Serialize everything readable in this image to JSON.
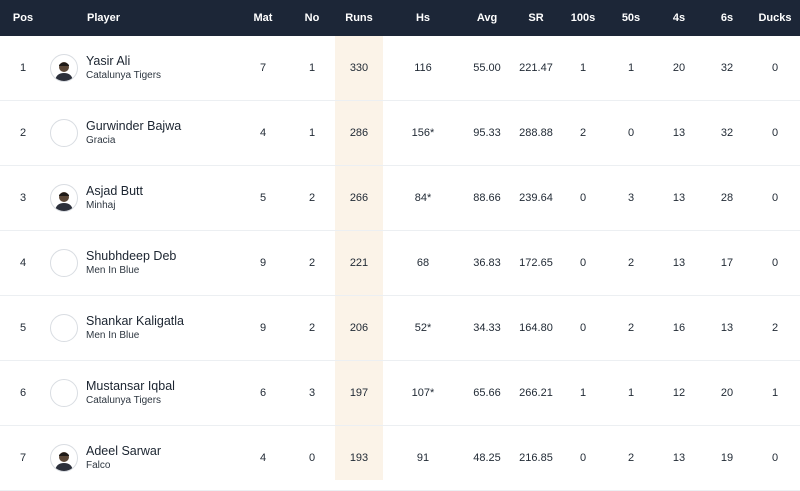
{
  "headers": {
    "pos": "Pos",
    "player": "Player",
    "mat": "Mat",
    "no": "No",
    "runs": "Runs",
    "hs": "Hs",
    "avg": "Avg",
    "sr": "SR",
    "h100": "100s",
    "h50": "50s",
    "fours": "4s",
    "sixes": "6s",
    "ducks": "Ducks"
  },
  "rows": [
    {
      "pos": "1",
      "name": "Yasir Ali",
      "team": "Catalunya Tigers",
      "mat": "7",
      "no": "1",
      "runs": "330",
      "hs": "116",
      "avg": "55.00",
      "sr": "221.47",
      "h100": "1",
      "h50": "1",
      "fours": "20",
      "sixes": "32",
      "ducks": "0"
    },
    {
      "pos": "2",
      "name": "Gurwinder Bajwa",
      "team": "Gracia",
      "mat": "4",
      "no": "1",
      "runs": "286",
      "hs": "156*",
      "avg": "95.33",
      "sr": "288.88",
      "h100": "2",
      "h50": "0",
      "fours": "13",
      "sixes": "32",
      "ducks": "0"
    },
    {
      "pos": "3",
      "name": "Asjad Butt",
      "team": "Minhaj",
      "mat": "5",
      "no": "2",
      "runs": "266",
      "hs": "84*",
      "avg": "88.66",
      "sr": "239.64",
      "h100": "0",
      "h50": "3",
      "fours": "13",
      "sixes": "28",
      "ducks": "0"
    },
    {
      "pos": "4",
      "name": "Shubhdeep Deb",
      "team": "Men In Blue",
      "mat": "9",
      "no": "2",
      "runs": "221",
      "hs": "68",
      "avg": "36.83",
      "sr": "172.65",
      "h100": "0",
      "h50": "2",
      "fours": "13",
      "sixes": "17",
      "ducks": "0"
    },
    {
      "pos": "5",
      "name": "Shankar Kaligatla",
      "team": "Men In Blue",
      "mat": "9",
      "no": "2",
      "runs": "206",
      "hs": "52*",
      "avg": "34.33",
      "sr": "164.80",
      "h100": "0",
      "h50": "2",
      "fours": "16",
      "sixes": "13",
      "ducks": "2"
    },
    {
      "pos": "6",
      "name": "Mustansar Iqbal",
      "team": "Catalunya Tigers",
      "mat": "6",
      "no": "3",
      "runs": "197",
      "hs": "107*",
      "avg": "65.66",
      "sr": "266.21",
      "h100": "1",
      "h50": "1",
      "fours": "12",
      "sixes": "20",
      "ducks": "1"
    },
    {
      "pos": "7",
      "name": "Adeel Sarwar",
      "team": "Falco",
      "mat": "4",
      "no": "0",
      "runs": "193",
      "hs": "91",
      "avg": "48.25",
      "sr": "216.85",
      "h100": "0",
      "h50": "2",
      "fours": "13",
      "sixes": "19",
      "ducks": "0"
    }
  ],
  "avatars": [
    "player-photo",
    "placeholder",
    "player-photo",
    "placeholder",
    "placeholder",
    "placeholder",
    "player-photo"
  ],
  "colors": {
    "header_bg": "#1c2637",
    "runs_column_bg": "#fbf3e8"
  }
}
